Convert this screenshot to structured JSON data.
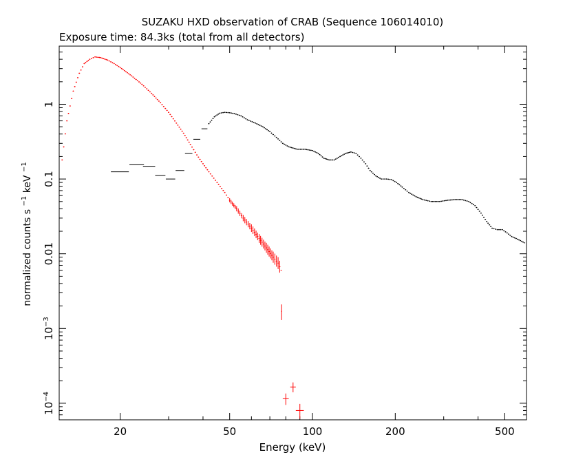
{
  "chart_data": {
    "type": "scatter",
    "title": "SUZAKU HXD observation of CRAB (Sequence 106014010)",
    "subtitle": "Exposure time: 84.3ks (total from all detectors)",
    "xlabel": "Energy (keV)",
    "ylabel": {
      "main": "normalized counts s",
      "sup1": "−1",
      "mid": " keV",
      "sup2": "−1"
    },
    "xscale": "log",
    "yscale": "log",
    "xlim": [
      12,
      600
    ],
    "ylim": [
      6e-05,
      6
    ],
    "grid": false,
    "x_ticks": [
      {
        "value": 20,
        "label": "20"
      },
      {
        "value": 50,
        "label": "50"
      },
      {
        "value": 100,
        "label": "100"
      },
      {
        "value": 200,
        "label": "200"
      },
      {
        "value": 500,
        "label": "500"
      }
    ],
    "y_ticks": [
      {
        "value": 0.0001,
        "label": "10",
        "exp": "−4"
      },
      {
        "value": 0.001,
        "label": "10",
        "exp": "−3"
      },
      {
        "value": 0.01,
        "label": "0.01"
      },
      {
        "value": 0.1,
        "label": "0.1"
      },
      {
        "value": 1,
        "label": "1"
      }
    ],
    "series": [
      {
        "color": "#ff0000",
        "style": "crosses",
        "points": [
          [
            12.3,
            0.18
          ],
          [
            12.8,
            0.6
          ],
          [
            13.5,
            1.5
          ],
          [
            14.2,
            2.6
          ],
          [
            14.8,
            3.5
          ],
          [
            15.5,
            4.0
          ],
          [
            16.2,
            4.3
          ],
          [
            17.0,
            4.2
          ],
          [
            18.0,
            3.9
          ],
          [
            19.0,
            3.5
          ],
          [
            20.0,
            3.1
          ],
          [
            22.0,
            2.4
          ],
          [
            24.0,
            1.85
          ],
          [
            26.0,
            1.4
          ],
          [
            28.0,
            1.05
          ],
          [
            30.0,
            0.78
          ],
          [
            32.0,
            0.56
          ],
          [
            34.0,
            0.41
          ],
          [
            36.0,
            0.29
          ],
          [
            38.0,
            0.21
          ],
          [
            40.0,
            0.16
          ],
          [
            42.0,
            0.125
          ],
          [
            45.0,
            0.09
          ],
          [
            48.0,
            0.066
          ],
          [
            50.0,
            0.052
          ],
          [
            53.0,
            0.04
          ],
          [
            56.0,
            0.03
          ],
          [
            60.0,
            0.022
          ],
          [
            64.0,
            0.016
          ],
          [
            68.0,
            0.012
          ],
          [
            72.0,
            0.009
          ],
          [
            75.0,
            0.0075
          ],
          [
            77.0,
            0.006
          ]
        ],
        "error_points": [
          {
            "x": 77.2,
            "y": 0.0017,
            "xerr": 0.3,
            "yerr_lo": 0.0004,
            "yerr_hi": 0.0004
          },
          {
            "x": 80.0,
            "y": 0.000115,
            "xerr": 2.0,
            "yerr_lo": 2e-05,
            "yerr_hi": 2e-05
          },
          {
            "x": 85.0,
            "y": 0.000165,
            "xerr": 2.0,
            "yerr_lo": 2.5e-05,
            "yerr_hi": 2.5e-05
          },
          {
            "x": 90.0,
            "y": 8e-05,
            "xerr": 3.0,
            "yerr_lo": 1.8e-05,
            "yerr_hi": 1.8e-05
          }
        ]
      },
      {
        "color": "#000000",
        "style": "crosses",
        "points": [
          [
            42.0,
            0.55
          ],
          [
            44.0,
            0.68
          ],
          [
            46.0,
            0.76
          ],
          [
            48.0,
            0.78
          ],
          [
            50.0,
            0.77
          ],
          [
            52.0,
            0.75
          ],
          [
            55.0,
            0.7
          ],
          [
            58.0,
            0.62
          ],
          [
            62.0,
            0.56
          ],
          [
            66.0,
            0.5
          ],
          [
            70.0,
            0.43
          ],
          [
            74.0,
            0.36
          ],
          [
            78.0,
            0.3
          ],
          [
            82.0,
            0.27
          ],
          [
            88.0,
            0.25
          ],
          [
            94.0,
            0.25
          ],
          [
            100.0,
            0.24
          ],
          [
            105.0,
            0.22
          ],
          [
            110.0,
            0.19
          ],
          [
            115.0,
            0.18
          ],
          [
            120.0,
            0.18
          ],
          [
            126.0,
            0.2
          ],
          [
            132.0,
            0.22
          ],
          [
            138.0,
            0.23
          ],
          [
            144.0,
            0.22
          ],
          [
            150.0,
            0.19
          ],
          [
            156.0,
            0.16
          ],
          [
            162.0,
            0.13
          ],
          [
            170.0,
            0.11
          ],
          [
            178.0,
            0.1
          ],
          [
            186.0,
            0.1
          ],
          [
            194.0,
            0.098
          ],
          [
            202.0,
            0.09
          ],
          [
            212.0,
            0.078
          ],
          [
            224.0,
            0.066
          ],
          [
            238.0,
            0.058
          ],
          [
            252.0,
            0.053
          ],
          [
            270.0,
            0.05
          ],
          [
            290.0,
            0.05
          ],
          [
            310.0,
            0.052
          ],
          [
            330.0,
            0.053
          ],
          [
            350.0,
            0.053
          ],
          [
            370.0,
            0.05
          ],
          [
            390.0,
            0.044
          ],
          [
            410.0,
            0.035
          ],
          [
            430.0,
            0.027
          ],
          [
            450.0,
            0.022
          ],
          [
            470.0,
            0.021
          ],
          [
            490.0,
            0.021
          ],
          [
            510.0,
            0.019
          ],
          [
            530.0,
            0.017
          ],
          [
            550.0,
            0.016
          ],
          [
            570.0,
            0.015
          ],
          [
            590.0,
            0.014
          ]
        ],
        "error_points": [
          {
            "x": 20.0,
            "y": 0.125,
            "xerr": 1.5,
            "yerr_lo": 0.0,
            "yerr_hi": 0.0
          },
          {
            "x": 23.0,
            "y": 0.155,
            "xerr": 1.4,
            "yerr_lo": 0.0,
            "yerr_hi": 0.0
          },
          {
            "x": 25.5,
            "y": 0.148,
            "xerr": 1.3,
            "yerr_lo": 0.0,
            "yerr_hi": 0.0
          },
          {
            "x": 28.0,
            "y": 0.112,
            "xerr": 1.2,
            "yerr_lo": 0.0,
            "yerr_hi": 0.0
          },
          {
            "x": 30.5,
            "y": 0.1,
            "xerr": 1.2,
            "yerr_lo": 0.0,
            "yerr_hi": 0.0
          },
          {
            "x": 33.0,
            "y": 0.13,
            "xerr": 1.2,
            "yerr_lo": 0.0,
            "yerr_hi": 0.0
          },
          {
            "x": 35.5,
            "y": 0.22,
            "xerr": 1.1,
            "yerr_lo": 0.0,
            "yerr_hi": 0.0
          },
          {
            "x": 38.0,
            "y": 0.34,
            "xerr": 1.1,
            "yerr_lo": 0.0,
            "yerr_hi": 0.0
          },
          {
            "x": 40.5,
            "y": 0.47,
            "xerr": 1.0,
            "yerr_lo": 0.0,
            "yerr_hi": 0.0
          }
        ]
      }
    ]
  }
}
